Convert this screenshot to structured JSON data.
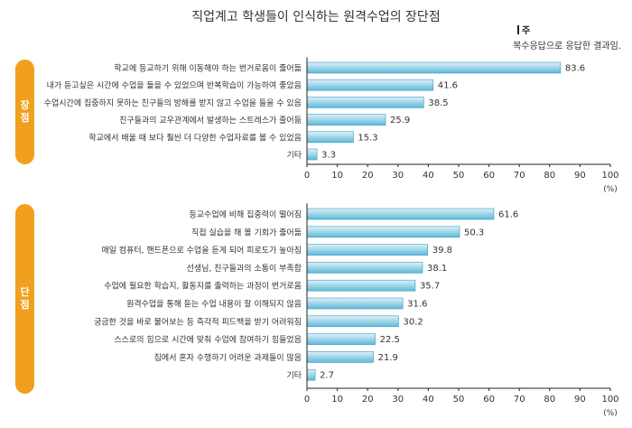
{
  "title": "직업계고 학생들이 인식하는 원격수업의 장단점",
  "note": {
    "tag": "주",
    "text": "복수응답으로 응답한 결과임."
  },
  "sections": [
    {
      "label_chars": [
        "장",
        "점"
      ]
    },
    {
      "label_chars": [
        "단",
        "점"
      ]
    }
  ],
  "chart_data": [
    {
      "type": "bar",
      "orientation": "horizontal",
      "categories": [
        "학교에 등교하기 위해 이동해야 하는 번거로움이 줄어듦",
        "내가 듣고싶은 시간에 수업을 들을 수 있었으며 반복학습이 가능하여 좋았음",
        "수업시간에 집중하지 못하는 친구들의 방해를 받지 않고 수업을 들을 수 있음",
        "친구들과의 교우관계에서 발생하는 스트레스가 줄어듦",
        "학교에서 배울 때 보다 훨씬 더 다양한 수업자료를 볼 수 있었음",
        "기타"
      ],
      "values": [
        83.6,
        41.6,
        38.5,
        25.9,
        15.3,
        3.3
      ],
      "xlim": [
        0,
        100
      ],
      "ticks": [
        "0",
        "10",
        "20",
        "30",
        "40",
        "50",
        "60",
        "70",
        "80",
        "90",
        "100"
      ],
      "unit": "(%)"
    },
    {
      "type": "bar",
      "orientation": "horizontal",
      "categories": [
        "등교수업에 비해 집중력이 떨어짐",
        "직접 실습을 해 볼 기회가 줄어듦",
        "매일 컴퓨터, 핸드폰으로 수업을 듣게 되어 피로도가 높아짐",
        "선생님, 친구들과의 소통이 부족함",
        "수업에 필요한 학습지, 활동지를 출력하는 과정이 번거로움",
        "원격수업을 통해 듣는 수업 내용이 잘 이해되지 않음",
        "궁금한 것을 바로 물어보는 등 즉각적 피드백을 받기 어려워짐",
        "스스로의 힘으로 시간에 맞춰 수업에 참여하기 힘들었음",
        "집에서 혼자 수행하기 어려운 과제들이 많음",
        "기타"
      ],
      "values": [
        61.6,
        50.3,
        39.8,
        38.1,
        35.7,
        31.6,
        30.2,
        22.5,
        21.9,
        2.7
      ],
      "xlim": [
        0,
        100
      ],
      "ticks": [
        "0",
        "10",
        "20",
        "30",
        "40",
        "50",
        "60",
        "70",
        "80",
        "90",
        "100"
      ],
      "unit": "(%)"
    }
  ],
  "colors": {
    "bar_top": "#dff1f9",
    "bar_bottom": "#5fb9d8",
    "bar_stroke": "#3a9cc2",
    "section_label": "#f0a01e",
    "axis": "#222222"
  }
}
